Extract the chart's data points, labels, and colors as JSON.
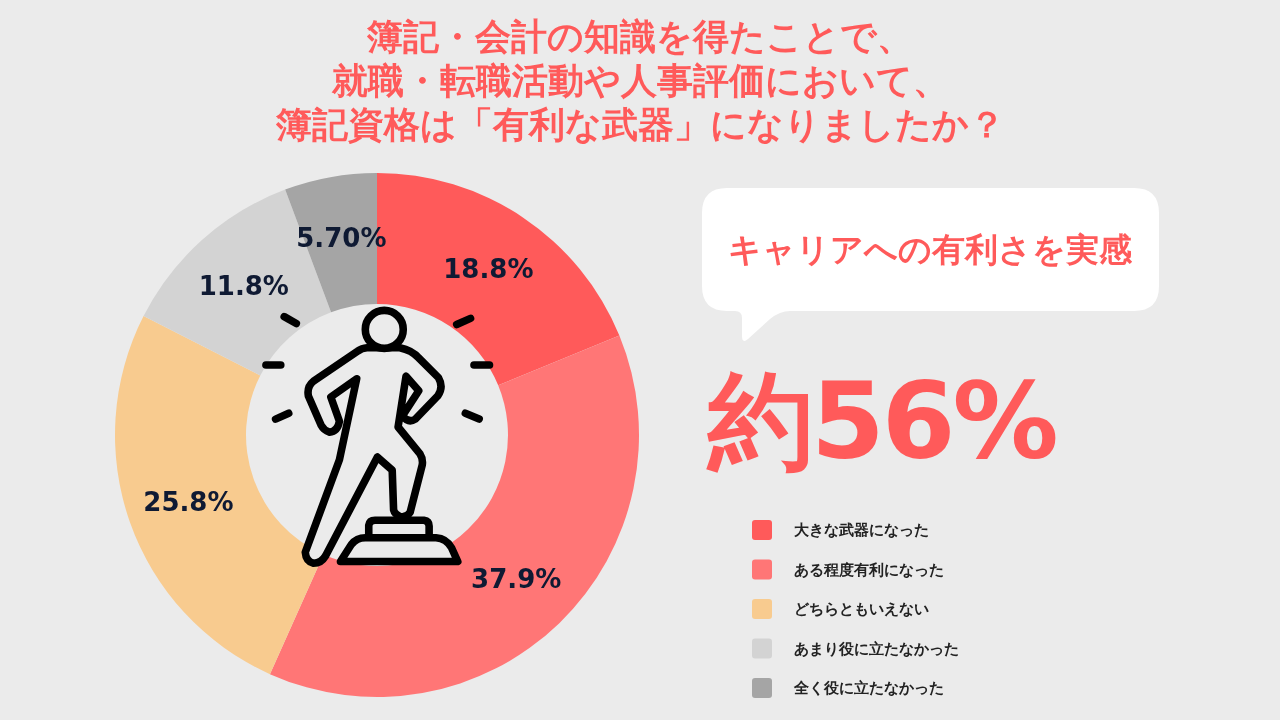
{
  "chart_data": {
    "type": "donut",
    "title": "簿記・会計の知識を得たことで、就職・転職活動や人事評価において、簿記資格は「有利な武器」になりましたか？",
    "categories": [
      "大きな武器になった",
      "ある程度有利になった",
      "どちらともいえない",
      "あまり役に立たなかった",
      "全く役に立たなかった"
    ],
    "values": [
      18.8,
      37.9,
      25.8,
      11.8,
      5.7
    ],
    "value_labels": [
      "18.8%",
      "37.9%",
      "25.8%",
      "11.8%",
      "5.70%"
    ],
    "colors": [
      "#ff5a5a",
      "#ff7676",
      "#f8cb8f",
      "#d3d3d3",
      "#a5a5a5"
    ],
    "legend": "bottom right",
    "annotations": [
      "キャリアへの有利さを実感",
      "約56%"
    ]
  }
}
